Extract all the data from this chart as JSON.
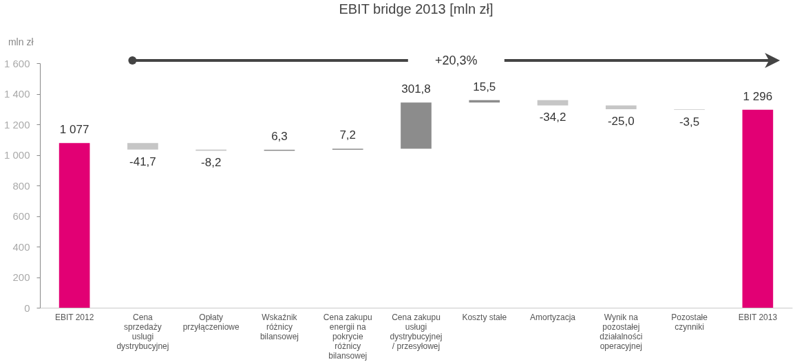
{
  "chart_data": {
    "type": "bar",
    "title": "EBIT bridge 2013 [mln zł]",
    "ylabel": "mln zł",
    "categories": [
      "EBIT 2012",
      "Cena sprzedaży uslugi dystrybucyjnej",
      "Opłaty przyłączeniowe",
      "Wskaźnik różnicy bilansowej",
      "Cena zakupu energii na pokrycie różnicy bilansowej",
      "Cena zakupu usługi dystrybucyjnej / przesyłowej",
      "Koszty stałe",
      "Amortyzacja",
      "Wynik na pozostałej działalności operacyjnej",
      "Pozostałe czynniki",
      "EBIT 2013"
    ],
    "values": [
      1077,
      -41.7,
      -8.2,
      6.3,
      7.2,
      301.8,
      15.5,
      -34.2,
      -25.0,
      -3.5,
      1296
    ],
    "base": [
      0,
      1077,
      1035.3,
      1027.1,
      1033.4,
      1040.6,
      1342.4,
      1357.9,
      1323.7,
      1298.7,
      0
    ],
    "colors": [
      "#e20074",
      "#c6c6c6",
      "#c6c6c6",
      "#8c8c8c",
      "#8c8c8c",
      "#8c8c8c",
      "#8c8c8c",
      "#c6c6c6",
      "#c6c6c6",
      "#c6c6c6",
      "#e20074"
    ],
    "value_labels": [
      "1 077",
      "-41,7",
      "-8,2",
      "6,3",
      "7,2",
      "301,8",
      "15,5",
      "-34,2",
      "-25,0",
      "-3,5",
      "1 296"
    ],
    "ylim": [
      0,
      1600
    ],
    "yticks": [
      {
        "value": 0,
        "label": "0"
      },
      {
        "value": 200,
        "label": "200"
      },
      {
        "value": 400,
        "label": "400"
      },
      {
        "value": 600,
        "label": "600"
      },
      {
        "value": 800,
        "label": "800"
      },
      {
        "value": 1000,
        "label": "1 000"
      },
      {
        "value": 1200,
        "label": "1 200"
      },
      {
        "value": 1400,
        "label": "1 400"
      },
      {
        "value": 1600,
        "label": "1 600"
      }
    ],
    "annotations": [
      "+20,3%"
    ],
    "grid": false,
    "legend": false
  }
}
